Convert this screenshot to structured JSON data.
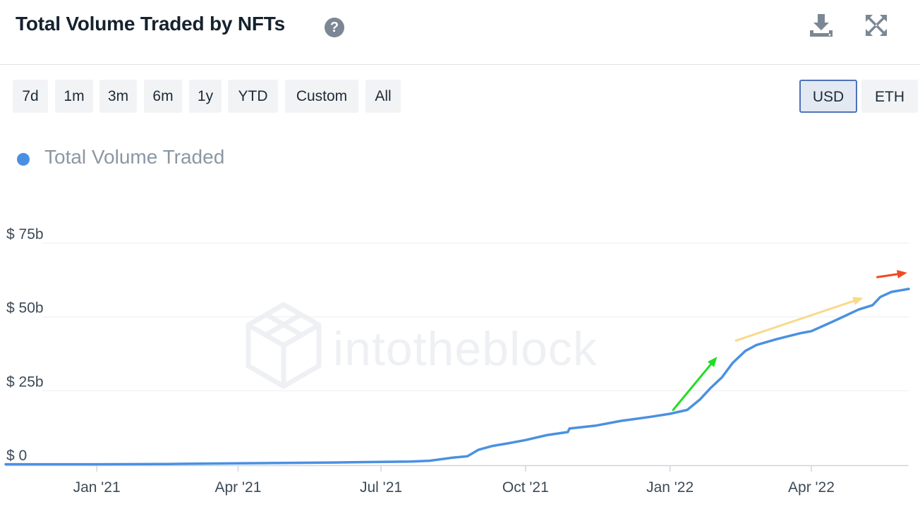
{
  "header": {
    "title": "Total Volume Traded by NFTs",
    "help_icon": "question-circle-icon",
    "download_icon": "download-icon",
    "expand_icon": "expand-icon"
  },
  "range_buttons": [
    "7d",
    "1m",
    "3m",
    "6m",
    "1y",
    "YTD",
    "Custom",
    "All"
  ],
  "currency_buttons": [
    {
      "label": "USD",
      "active": true
    },
    {
      "label": "ETH",
      "active": false
    }
  ],
  "watermark": "intotheblock",
  "colors": {
    "line": "#4a90e2",
    "annotation_green": "#22dd22",
    "annotation_yellow": "#f9d98a",
    "annotation_red": "#f04a23"
  },
  "chart_data": {
    "type": "line",
    "title": "Total Volume Traded by NFTs",
    "legend_position": "top-left",
    "grid": true,
    "y_unit": "USD billions",
    "ylim": [
      0,
      75
    ],
    "y_ticks": [
      {
        "value": 0,
        "label": "$ 0"
      },
      {
        "value": 25,
        "label": "$ 25b"
      },
      {
        "value": 50,
        "label": "$ 50b"
      },
      {
        "value": 75,
        "label": "$ 75b"
      }
    ],
    "xlim": [
      "2020-11-04",
      "2022-06-02"
    ],
    "x_ticks": [
      {
        "date": "2021-01-01",
        "label": "Jan '21"
      },
      {
        "date": "2021-04-01",
        "label": "Apr '21"
      },
      {
        "date": "2021-07-01",
        "label": "Jul '21"
      },
      {
        "date": "2021-10-01",
        "label": "Oct '21"
      },
      {
        "date": "2022-01-01",
        "label": "Jan '22"
      },
      {
        "date": "2022-04-01",
        "label": "Apr '22"
      }
    ],
    "series": [
      {
        "name": "Total Volume Traded",
        "points": [
          [
            "2020-11-04",
            0.1
          ],
          [
            "2021-01-01",
            0.1
          ],
          [
            "2021-02-15",
            0.2
          ],
          [
            "2021-04-01",
            0.4
          ],
          [
            "2021-06-01",
            0.7
          ],
          [
            "2021-07-20",
            1.0
          ],
          [
            "2021-08-01",
            1.3
          ],
          [
            "2021-08-15",
            2.3
          ],
          [
            "2021-08-25",
            2.8
          ],
          [
            "2021-09-01",
            5.0
          ],
          [
            "2021-09-10",
            6.3
          ],
          [
            "2021-09-20",
            7.2
          ],
          [
            "2021-10-01",
            8.3
          ],
          [
            "2021-10-15",
            10.0
          ],
          [
            "2021-10-28",
            11.0
          ],
          [
            "2021-10-29",
            12.2
          ],
          [
            "2021-11-15",
            13.2
          ],
          [
            "2021-12-01",
            14.8
          ],
          [
            "2021-12-20",
            16.2
          ],
          [
            "2022-01-01",
            17.2
          ],
          [
            "2022-01-12",
            18.5
          ],
          [
            "2022-01-20",
            22.0
          ],
          [
            "2022-01-27",
            26.0
          ],
          [
            "2022-02-03",
            29.5
          ],
          [
            "2022-02-10",
            34.5
          ],
          [
            "2022-02-18",
            38.5
          ],
          [
            "2022-02-25",
            40.5
          ],
          [
            "2022-03-10",
            42.5
          ],
          [
            "2022-03-25",
            44.5
          ],
          [
            "2022-04-01",
            45.2
          ],
          [
            "2022-04-15",
            48.5
          ],
          [
            "2022-05-01",
            52.5
          ],
          [
            "2022-05-10",
            54.0
          ],
          [
            "2022-05-15",
            56.8
          ],
          [
            "2022-05-22",
            58.5
          ],
          [
            "2022-06-02",
            59.5
          ]
        ]
      }
    ],
    "annotations": [
      {
        "type": "arrow",
        "color": "green",
        "from": [
          "2022-01-03",
          18.5
        ],
        "to": [
          "2022-01-31",
          36.5
        ]
      },
      {
        "type": "arrow",
        "color": "yellow",
        "from": [
          "2022-02-12",
          42.0
        ],
        "to": [
          "2022-05-04",
          56.5
        ]
      },
      {
        "type": "arrow",
        "color": "red",
        "from": [
          "2022-05-13",
          63.5
        ],
        "to": [
          "2022-06-01",
          65.0
        ]
      }
    ]
  }
}
